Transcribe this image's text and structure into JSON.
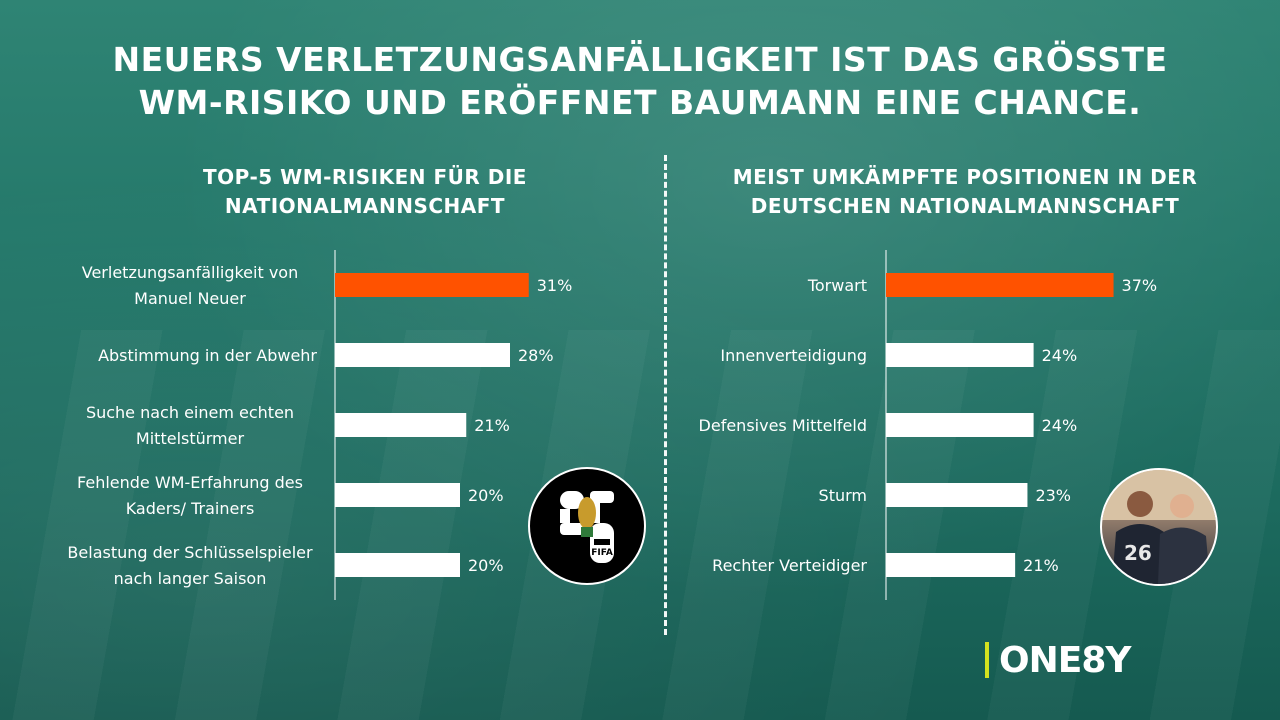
{
  "title_lines": [
    "NEUERS VERLETZUNGSANFÄLLIGKEIT IST DAS GRÖSSTE",
    "WM-RISIKO UND ERÖFFNET BAUMANN EINE CHANCE."
  ],
  "colors": {
    "highlight": "#ff5200",
    "bar": "#ffffff",
    "logo_accent": "#d4e21f"
  },
  "icons": {
    "left_badge": "fifa-world-cup-2026-logo",
    "right_badge": "players-photo"
  },
  "logo": {
    "text": "ONE8Y"
  },
  "chart_data": [
    {
      "type": "bar",
      "orientation": "horizontal",
      "title_lines": [
        "TOP-5 WM-RISIKEN FÜR DIE",
        "NATIONALMANNSCHAFT"
      ],
      "categories": [
        [
          "Verletzungsanfälligkeit von",
          "Manuel Neuer"
        ],
        [
          "Abstimmung in der Abwehr"
        ],
        [
          "Suche nach einem echten",
          "Mittelstürmer"
        ],
        [
          "Fehlende WM-Erfahrung des",
          "Kaders/ Trainers"
        ],
        [
          "Belastung der Schlüsselspieler",
          "nach langer Saison"
        ]
      ],
      "values": [
        31,
        28,
        21,
        20,
        20
      ],
      "value_labels": [
        "31%",
        "28%",
        "21%",
        "20%",
        "20%"
      ],
      "highlight_index": 0,
      "unit": "%",
      "xlim": [
        0,
        40
      ],
      "grid": false,
      "legend": "none"
    },
    {
      "type": "bar",
      "orientation": "horizontal",
      "title_lines": [
        "MEIST UMKÄMPFTE POSITIONEN IN DER",
        "DEUTSCHEN NATIONALMANNSCHAFT"
      ],
      "categories": [
        [
          "Torwart"
        ],
        [
          "Innenverteidigung"
        ],
        [
          "Defensives Mittelfeld"
        ],
        [
          "Sturm"
        ],
        [
          "Rechter Verteidiger"
        ]
      ],
      "values": [
        37,
        24,
        24,
        23,
        21
      ],
      "value_labels": [
        "37%",
        "24%",
        "24%",
        "23%",
        "21%"
      ],
      "highlight_index": 0,
      "unit": "%",
      "xlim": [
        0,
        40
      ],
      "grid": false,
      "legend": "none"
    }
  ]
}
